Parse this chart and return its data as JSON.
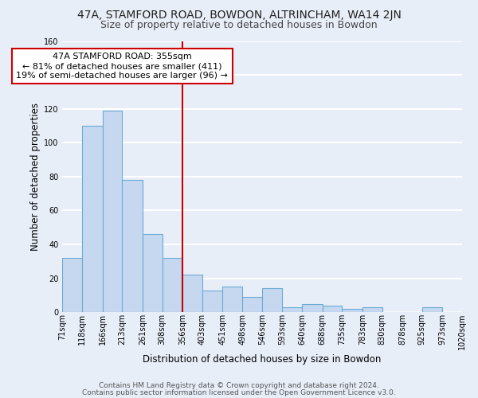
{
  "title": "47A, STAMFORD ROAD, BOWDON, ALTRINCHAM, WA14 2JN",
  "subtitle": "Size of property relative to detached houses in Bowdon",
  "xlabel": "Distribution of detached houses by size in Bowdon",
  "ylabel": "Number of detached properties",
  "bar_values": [
    32,
    110,
    119,
    78,
    46,
    32,
    22,
    13,
    15,
    9,
    14,
    3,
    5,
    4,
    2,
    3,
    0,
    0,
    3,
    0
  ],
  "bin_edges": [
    71,
    118,
    166,
    213,
    261,
    308,
    356,
    403,
    451,
    498,
    546,
    593,
    640,
    688,
    735,
    783,
    830,
    878,
    925,
    973,
    1020
  ],
  "tick_labels": [
    "71sqm",
    "118sqm",
    "166sqm",
    "213sqm",
    "261sqm",
    "308sqm",
    "356sqm",
    "403sqm",
    "451sqm",
    "498sqm",
    "546sqm",
    "593sqm",
    "640sqm",
    "688sqm",
    "735sqm",
    "783sqm",
    "830sqm",
    "878sqm",
    "925sqm",
    "973sqm",
    "1020sqm"
  ],
  "bar_color": "#c5d8f0",
  "bar_edge_color": "#6aaad4",
  "vline_x": 356,
  "vline_color": "#cc0000",
  "annotation_line1": "47A STAMFORD ROAD: 355sqm",
  "annotation_line2": "← 81% of detached houses are smaller (411)",
  "annotation_line3": "19% of semi-detached houses are larger (96) →",
  "annotation_box_color": "#ffffff",
  "annotation_box_edge": "#cc0000",
  "ylim": [
    0,
    160
  ],
  "yticks": [
    0,
    20,
    40,
    60,
    80,
    100,
    120,
    140,
    160
  ],
  "footer_line1": "Contains HM Land Registry data © Crown copyright and database right 2024.",
  "footer_line2": "Contains public sector information licensed under the Open Government Licence v3.0.",
  "background_color": "#e8eef8",
  "plot_bg_color": "#e8eef8",
  "grid_color": "#ffffff",
  "title_fontsize": 10,
  "subtitle_fontsize": 9,
  "axis_label_fontsize": 8.5,
  "tick_fontsize": 7,
  "annotation_fontsize": 8,
  "footer_fontsize": 6.5
}
